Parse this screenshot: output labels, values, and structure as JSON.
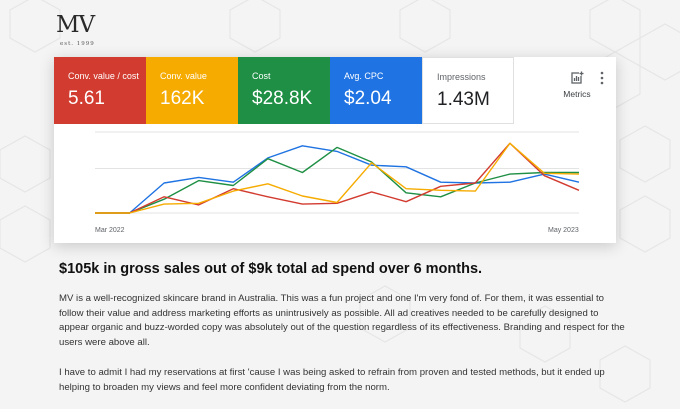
{
  "brand": {
    "logo": "MV",
    "established": "est. 1999"
  },
  "kpi_tiles": [
    {
      "label": "Conv. value / cost",
      "value": "5.61",
      "color": "#d23b2f"
    },
    {
      "label": "Conv. value",
      "value": "162K",
      "color": "#f6ab00"
    },
    {
      "label": "Cost",
      "value": "$28.8K",
      "color": "#1e8f44"
    },
    {
      "label": "Avg. CPC",
      "value": "$2.04",
      "color": "#1f73e2"
    },
    {
      "label": "Impressions",
      "value": "1.43M",
      "color": "#ffffff"
    }
  ],
  "toolbar": {
    "metrics_label": "Metrics",
    "metrics_icon": "add-chart-icon",
    "more_icon": "more-vert-icon"
  },
  "chart_data": {
    "type": "line",
    "x_start_label": "Mar 2022",
    "x_end_label": "May 2023",
    "grid": true,
    "series": [
      {
        "color": "#1f73e2",
        "values": [
          0,
          0,
          37,
          44,
          38,
          68,
          83,
          76,
          59,
          57,
          38,
          37,
          38,
          48,
          38
        ]
      },
      {
        "color": "#1e8f44",
        "values": [
          0,
          0,
          17,
          40,
          34,
          67,
          50,
          81,
          63,
          25,
          20,
          37,
          48,
          50,
          50
        ]
      },
      {
        "color": "#d23b2f",
        "values": [
          0,
          0,
          20,
          10,
          30,
          20,
          11,
          12,
          26,
          14,
          33,
          37,
          86,
          46,
          28
        ]
      },
      {
        "color": "#f6ab00",
        "values": [
          0,
          0,
          11,
          12,
          27,
          36,
          21,
          13,
          62,
          30,
          28,
          27,
          86,
          49,
          48
        ]
      }
    ]
  },
  "headline": "$105k in gross sales out of $9k total ad spend over 6 months.",
  "paragraphs": [
    "MV is a well-recognized skincare brand in Australia. This was a fun project and one I'm very fond of. For them, it was essential to follow their value and address marketing efforts as unintrusively as possible. All ad creatives needed to be carefully designed to appear organic and buzz-worded copy was absolutely out of the question regardless of its effectiveness. Branding and respect for the users were above all.",
    "I have to admit I had my reservations at first 'cause I was being asked to refrain from proven and tested methods, but it ended up helping to broaden my views and feel more confident deviating from the norm."
  ]
}
